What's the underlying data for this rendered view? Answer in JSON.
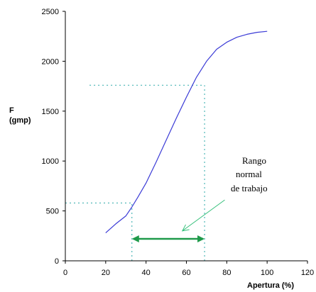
{
  "chart_data": {
    "type": "line",
    "xlabel": "Apertura (%)",
    "ylabel": [
      "F",
      "(gmp)"
    ],
    "xlim": [
      0,
      120
    ],
    "ylim": [
      0,
      2500
    ],
    "xticks": [
      0,
      20,
      40,
      60,
      80,
      100,
      120
    ],
    "yticks": [
      0,
      500,
      1000,
      1500,
      2000,
      2500
    ],
    "grid": false,
    "series": [
      {
        "x": [
          20,
          25,
          30,
          33,
          36,
          40,
          45,
          50,
          55,
          60,
          65,
          70,
          75,
          80,
          85,
          90,
          95,
          100
        ],
        "y": [
          280,
          370,
          450,
          540,
          640,
          780,
          990,
          1210,
          1430,
          1640,
          1840,
          2000,
          2120,
          2190,
          2240,
          2270,
          2290,
          2300
        ]
      }
    ],
    "reference_lines": [
      {
        "from": [
          0,
          580
        ],
        "to": [
          33,
          580
        ]
      },
      {
        "from": [
          33,
          0
        ],
        "to": [
          33,
          580
        ]
      },
      {
        "from": [
          12,
          1760
        ],
        "to": [
          69,
          1760
        ]
      },
      {
        "from": [
          69,
          0
        ],
        "to": [
          69,
          1760
        ]
      }
    ],
    "range_arrow": {
      "x_start": 33,
      "x_end": 69,
      "y": 220,
      "color": "#1f9a4a"
    },
    "annotation": {
      "lines": [
        "Rango",
        "normal",
        "de trabajo"
      ],
      "arrow_from": [
        79,
        610
      ],
      "arrow_to": [
        58,
        300
      ],
      "color": "#34c07a"
    },
    "colors": {
      "curve": "#3b3bd6",
      "reference": "#2aa8a8",
      "axis": "#000000"
    }
  }
}
